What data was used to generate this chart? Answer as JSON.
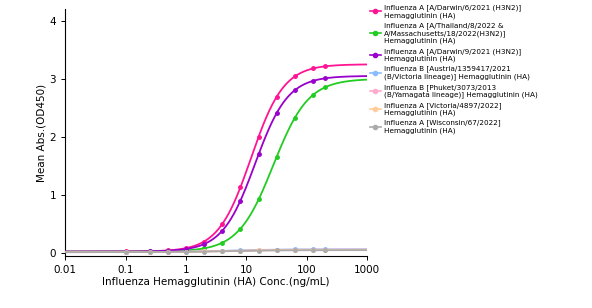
{
  "title": "",
  "xlabel": "Influenza Hemagglutinin (HA) Conc.(ng/mL)",
  "ylabel": "Mean Abs.(OD450)",
  "xlim": [
    0.01,
    1000
  ],
  "ylim": [
    -0.05,
    4.2
  ],
  "yticks": [
    0,
    1,
    2,
    3,
    4
  ],
  "series": [
    {
      "label": "Influenza A [A/Darwin/6/2021 (H3N2)]\nHemagglutinin (HA)",
      "color": "#FF1493",
      "top": 3.25,
      "ec50": 12.0,
      "hill": 1.6,
      "bottom": 0.02
    },
    {
      "label": "Influenza A [A/Thailand/8/2022 &\nA/Massachusetts/18/2022(H3N2)]\nHemagglutinin (HA)",
      "color": "#22CC22",
      "top": 3.0,
      "ec50": 28.0,
      "hill": 1.5,
      "bottom": 0.02
    },
    {
      "label": "Influenza A [A/Darwin/9/2021 (H3N2)]\nHemagglutinin (HA)",
      "color": "#9900CC",
      "top": 3.05,
      "ec50": 14.0,
      "hill": 1.6,
      "bottom": 0.02
    },
    {
      "label": "Influenza B [Austria/1359417/2021\n(B/Victoria lineage)] Hemagglutinin (HA)",
      "color": "#88BBFF",
      "top": 0.06,
      "ec50": 5.0,
      "hill": 1.0,
      "bottom": 0.01
    },
    {
      "label": "Influenza B [Phuket/3073/2013\n(B/Yamagata lineage)] Hemagglutinin (HA)",
      "color": "#FFAACC",
      "top": 0.055,
      "ec50": 5.0,
      "hill": 1.0,
      "bottom": 0.01
    },
    {
      "label": "Influenza A [Victoria/4897/2022]\nHemagglutinin (HA)",
      "color": "#FFCC99",
      "top": 0.05,
      "ec50": 5.0,
      "hill": 1.0,
      "bottom": 0.01
    },
    {
      "label": "Influenza A [Wisconsin/67/2022]\nHemagglutinin (HA)",
      "color": "#AAAAAA",
      "top": 0.045,
      "ec50": 5.0,
      "hill": 1.0,
      "bottom": 0.01
    }
  ],
  "x_data_points": [
    0.1,
    0.25,
    0.5,
    1.0,
    2.0,
    4.0,
    8.0,
    16.0,
    32.0,
    64.0,
    128.0,
    200.0
  ],
  "background_color": "#FFFFFF",
  "legend_fontsize": 5.2,
  "axis_fontsize": 7.5,
  "tick_fontsize": 7.5,
  "figwidth": 5.92,
  "figheight": 3.08
}
